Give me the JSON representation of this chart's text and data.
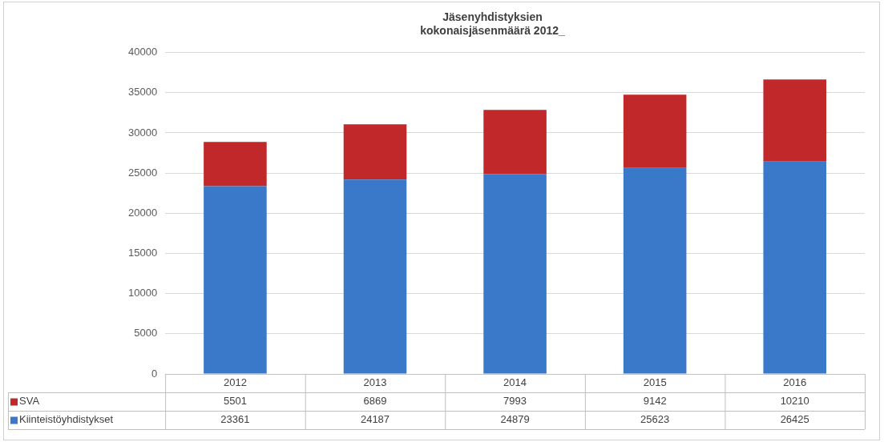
{
  "chart_data": {
    "type": "bar",
    "title": "Jäsenyhdistyksien\nkokonaisjäsenmäärä 2012_",
    "stacked": true,
    "categories": [
      "2012",
      "2013",
      "2014",
      "2015",
      "2016"
    ],
    "series": [
      {
        "name": "Kiinteistöyhdistykset",
        "color": "#3a78c9",
        "values": [
          23361,
          24187,
          24879,
          25623,
          26425
        ]
      },
      {
        "name": "SVA",
        "color": "#c0282a",
        "values": [
          5501,
          6869,
          7993,
          9142,
          10210
        ]
      }
    ],
    "ylim": [
      0,
      40000
    ],
    "yticks": [
      0,
      5000,
      10000,
      15000,
      20000,
      25000,
      30000,
      35000,
      40000
    ],
    "grid": "y",
    "legend": "bottom",
    "data_labels": true
  }
}
